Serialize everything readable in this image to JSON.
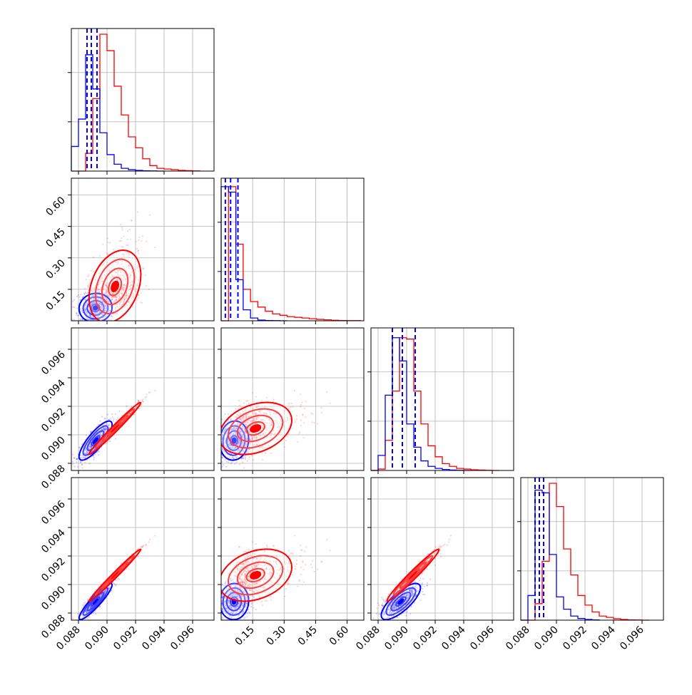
{
  "colors": {
    "red": "#ff0000",
    "blue": "#0000ff",
    "grid": "#b0b0b0",
    "frame": "#000000"
  },
  "chart_data": {
    "type": "scatter",
    "subtype": "corner-plot",
    "title": "",
    "grid": true,
    "series": [
      {
        "color": "#ff0000",
        "means": [
          0.0904,
          0.15,
          0.0903,
          0.0905
        ],
        "histograms": [
          {
            "edges": [
              0.0875,
              0.0885,
              0.089,
              0.0895,
              0.09,
              0.0905,
              0.091,
              0.0915,
              0.092,
              0.0925,
              0.093,
              0.0935,
              0.094,
              0.0945,
              0.095,
              0.0955,
              0.096,
              0.0965
            ],
            "counts": [
              0,
              0.13,
              0.53,
              1.0,
              0.88,
              0.62,
              0.41,
              0.25,
              0.17,
              0.09,
              0.04,
              0.02,
              0.015,
              0.01,
              0.005,
              0.003,
              0.001
            ]
          },
          {
            "edges": [
              0.0,
              0.035,
              0.07,
              0.105,
              0.14,
              0.175,
              0.21,
              0.245,
              0.28,
              0.315,
              0.35,
              0.385,
              0.42,
              0.455,
              0.49,
              0.525,
              0.56,
              0.595,
              0.63,
              0.665
            ],
            "counts": [
              0.0,
              0.98,
              0.56,
              0.23,
              0.14,
              0.1,
              0.07,
              0.05,
              0.04,
              0.03,
              0.025,
              0.02,
              0.015,
              0.01,
              0.007,
              0.004,
              0.002,
              0.001,
              0.001
            ]
          },
          {
            "edges": [
              0.0875,
              0.088,
              0.0885,
              0.089,
              0.0895,
              0.09,
              0.0905,
              0.091,
              0.0915,
              0.092,
              0.0925,
              0.093,
              0.0935,
              0.094,
              0.0945,
              0.095,
              0.0955,
              0.096,
              0.0965
            ],
            "counts": [
              0,
              0.01,
              0.22,
              0.58,
              0.97,
              0.96,
              0.58,
              0.34,
              0.18,
              0.1,
              0.05,
              0.03,
              0.015,
              0.01,
              0.005,
              0.003,
              0.001,
              0
            ]
          },
          {
            "edges": [
              0.0875,
              0.088,
              0.0885,
              0.089,
              0.0895,
              0.09,
              0.0905,
              0.091,
              0.0915,
              0.092,
              0.0925,
              0.093,
              0.0935,
              0.094,
              0.0945,
              0.095,
              0.0955,
              0.096,
              0.0965
            ],
            "counts": [
              0,
              0,
              0.12,
              0.43,
              1.0,
              0.83,
              0.52,
              0.33,
              0.18,
              0.11,
              0.06,
              0.03,
              0.02,
              0.01,
              0.005,
              0.002,
              0.001,
              0
            ]
          }
        ],
        "quantile_lines": [
          [],
          [],
          [],
          []
        ]
      },
      {
        "color": "#0000ff",
        "means": [
          0.0893,
          0.07,
          0.0897,
          0.0889
        ],
        "histograms": [
          {
            "edges": [
              0.0875,
              0.088,
              0.0885,
              0.089,
              0.0895,
              0.09,
              0.0905,
              0.091,
              0.0915,
              0.092,
              0.0925,
              0.093,
              0.0935,
              0.094
            ],
            "counts": [
              0.18,
              0.38,
              0.85,
              0.6,
              0.28,
              0.12,
              0.05,
              0.02,
              0.01,
              0.005,
              0.002,
              0.001,
              0
            ]
          },
          {
            "edges": [
              0.0,
              0.035,
              0.07,
              0.105,
              0.14,
              0.175,
              0.21,
              0.245,
              0.28,
              0.315
            ],
            "counts": [
              0.98,
              0.94,
              0.3,
              0.08,
              0.02,
              0.005,
              0.002,
              0.001,
              0
            ]
          },
          {
            "edges": [
              0.0875,
              0.088,
              0.0885,
              0.089,
              0.0895,
              0.09,
              0.0905,
              0.091,
              0.0915,
              0.092,
              0.0925,
              0.093,
              0.0935,
              0.094,
              0.0945
            ],
            "counts": [
              0,
              0.11,
              0.55,
              0.97,
              0.8,
              0.34,
              0.17,
              0.07,
              0.03,
              0.015,
              0.007,
              0.003,
              0.001,
              0
            ]
          },
          {
            "edges": [
              0.0875,
              0.088,
              0.0885,
              0.089,
              0.0895,
              0.09,
              0.0905,
              0.091,
              0.0915,
              0.092,
              0.0925,
              0.093
            ],
            "counts": [
              0,
              0.18,
              0.95,
              0.93,
              0.48,
              0.17,
              0.08,
              0.03,
              0.012,
              0.005,
              0.002
            ]
          }
        ],
        "quantile_lines": [
          [
            0.0886,
            0.0889,
            0.0893
          ],
          [
            0.02,
            0.045,
            0.08
          ],
          [
            0.089,
            0.0897,
            0.0906
          ],
          [
            0.0885,
            0.0888,
            0.0891
          ]
        ]
      }
    ],
    "marginal_xlims": [
      [
        0.0875,
        0.0975
      ],
      [
        0.0,
        0.68
      ],
      [
        0.0875,
        0.0975
      ],
      [
        0.0875,
        0.0975
      ]
    ],
    "scatter_ylims": [
      [
        0.0,
        0.68
      ],
      [
        0.0875,
        0.0975
      ],
      [
        0.0875,
        0.0975
      ]
    ],
    "x_ticks": [
      [
        "0.088",
        "0.090",
        "0.092",
        "0.094",
        "0.096"
      ],
      [
        "0.15",
        "0.30",
        "0.45",
        "0.60"
      ],
      [
        "0.088",
        "0.090",
        "0.092",
        "0.094",
        "0.096"
      ],
      [
        "0.088",
        "0.090",
        "0.092",
        "0.094",
        "0.096"
      ]
    ],
    "y_ticks": [
      [],
      [
        "0.15",
        "0.30",
        "0.45",
        "0.60"
      ],
      [
        "0.088",
        "0.090",
        "0.092",
        "0.094",
        "0.096"
      ],
      [
        "0.088",
        "0.090",
        "0.092",
        "0.094",
        "0.096"
      ]
    ]
  }
}
